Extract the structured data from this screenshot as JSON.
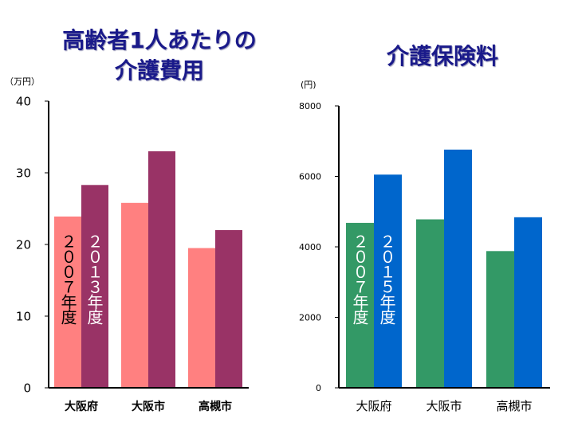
{
  "titles": {
    "left_line1": "高齢者1人あたりの",
    "left_line2": "介護費用",
    "right": "介護保険料"
  },
  "units": {
    "left": "（万円）",
    "right": "(円)"
  },
  "colors": {
    "cost_2007": "#ff8080",
    "cost_2013": "#993366",
    "premium_2007": "#339966",
    "premium_2015": "#0066cc"
  },
  "chart_data": [
    {
      "type": "bar",
      "title": "高齢者1人あたりの介護費用",
      "ylabel": "（万円）",
      "categories": [
        "大阪府",
        "大阪市",
        "高槻市"
      ],
      "ylim": [
        0,
        40
      ],
      "yticks": [
        0,
        10,
        20,
        30,
        40
      ],
      "grid": false,
      "series": [
        {
          "name": "２００７年度",
          "values": [
            23.9,
            25.8,
            19.5
          ]
        },
        {
          "name": "２０１３年度",
          "values": [
            28.3,
            33.0,
            22.0
          ]
        }
      ]
    },
    {
      "type": "bar",
      "title": "介護保険料",
      "ylabel": "(円)",
      "categories": [
        "大阪府",
        "大阪市",
        "高槻市"
      ],
      "ylim": [
        0,
        8000
      ],
      "yticks": [
        0,
        2000,
        4000,
        6000,
        8000
      ],
      "grid": false,
      "series": [
        {
          "name": "２００７年度",
          "values": [
            4680,
            4780,
            3880
          ]
        },
        {
          "name": "２０１５年度",
          "values": [
            6050,
            6760,
            4840
          ]
        }
      ]
    }
  ]
}
